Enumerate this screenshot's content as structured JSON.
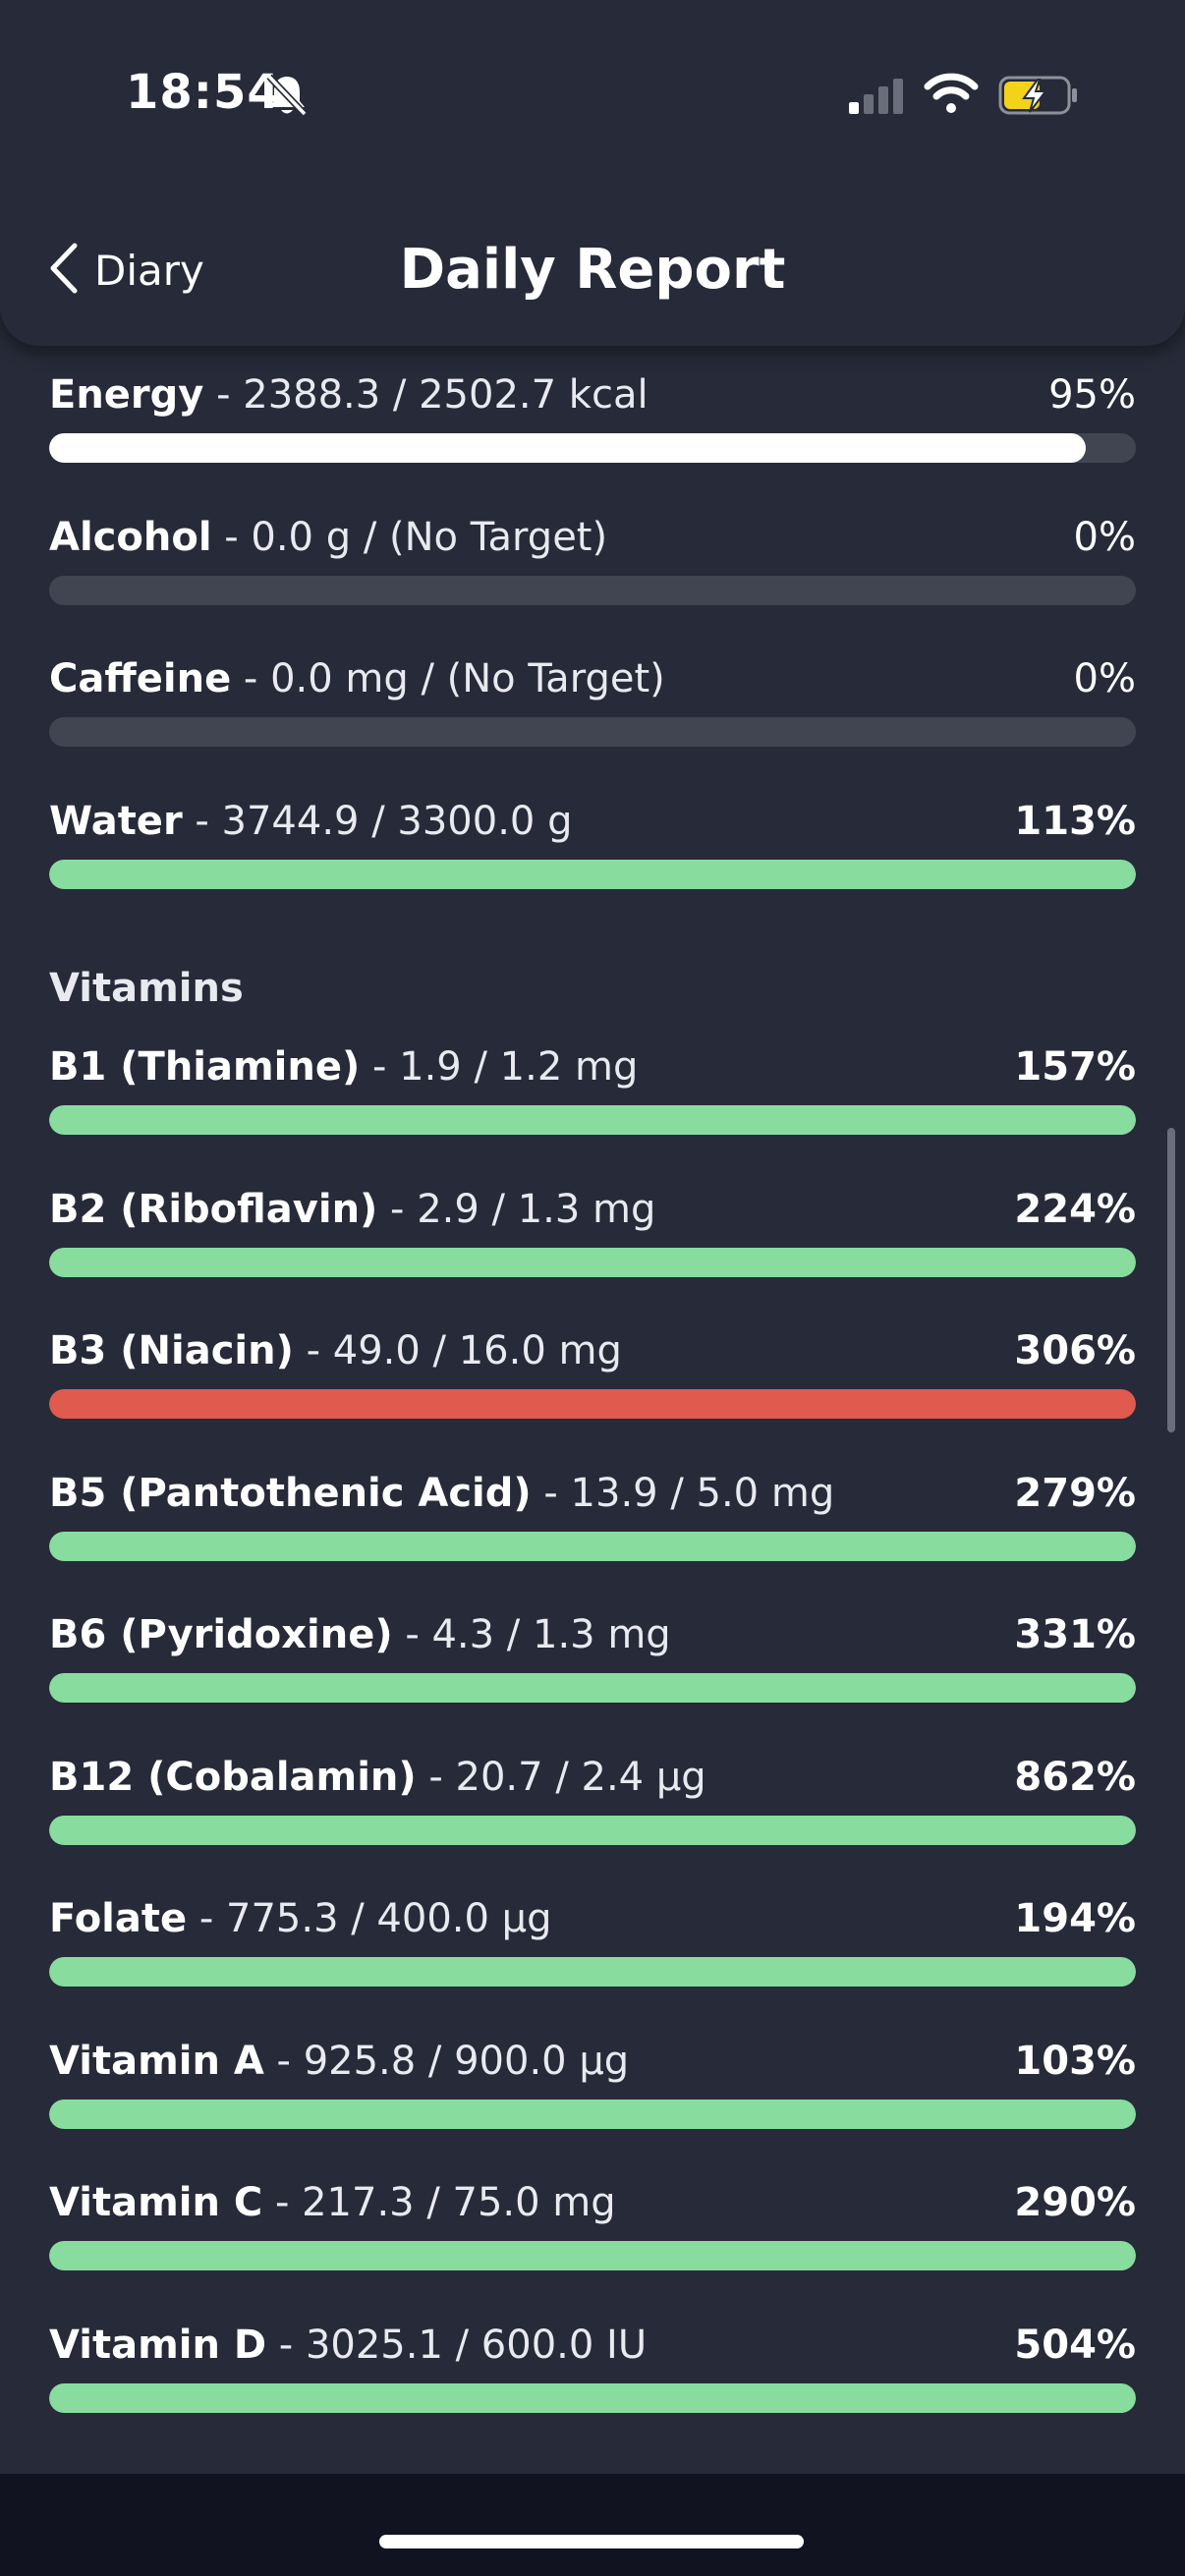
{
  "status_bar": {
    "time": "18:54"
  },
  "header": {
    "back_label": "Diary",
    "title": "Daily Report"
  },
  "colors": {
    "background": "#272a38",
    "bar_track": "#414451",
    "good": "#87dc9e",
    "over": "#e05a4d",
    "neutral": "#ffffff"
  },
  "general": [
    {
      "name": "Energy",
      "detail": " - 2388.3 / 2502.7 kcal",
      "percent": "95%",
      "fill": 0.954,
      "color": "#ffffff",
      "strong": false
    },
    {
      "name": "Alcohol",
      "detail": " - 0.0 g / (No Target)",
      "percent": "0%",
      "fill": 0,
      "color": "#ffffff",
      "strong": false
    },
    {
      "name": "Caffeine",
      "detail": " - 0.0 mg / (No Target)",
      "percent": "0%",
      "fill": 0,
      "color": "#ffffff",
      "strong": false
    },
    {
      "name": "Water",
      "detail": " - 3744.9 / 3300.0 g",
      "percent": "113%",
      "fill": 1,
      "color": "#87dc9e",
      "strong": true
    }
  ],
  "vitamins_title": "Vitamins",
  "vitamins": [
    {
      "name": "B1 (Thiamine)",
      "detail": " - 1.9 / 1.2 mg",
      "percent": "157%",
      "fill": 1,
      "color": "#87dc9e",
      "strong": true
    },
    {
      "name": "B2 (Riboflavin)",
      "detail": " - 2.9 / 1.3 mg",
      "percent": "224%",
      "fill": 1,
      "color": "#87dc9e",
      "strong": true
    },
    {
      "name": "B3 (Niacin)",
      "detail": " - 49.0 / 16.0 mg",
      "percent": "306%",
      "fill": 1,
      "color": "#e05a4d",
      "strong": true
    },
    {
      "name": "B5 (Pantothenic Acid)",
      "detail": " - 13.9 / 5.0 mg",
      "percent": "279%",
      "fill": 1,
      "color": "#87dc9e",
      "strong": true
    },
    {
      "name": "B6 (Pyridoxine)",
      "detail": " - 4.3 / 1.3 mg",
      "percent": "331%",
      "fill": 1,
      "color": "#87dc9e",
      "strong": true
    },
    {
      "name": "B12 (Cobalamin)",
      "detail": " - 20.7 / 2.4 µg",
      "percent": "862%",
      "fill": 1,
      "color": "#87dc9e",
      "strong": true
    },
    {
      "name": "Folate",
      "detail": " - 775.3 / 400.0 µg",
      "percent": "194%",
      "fill": 1,
      "color": "#87dc9e",
      "strong": true
    },
    {
      "name": "Vitamin A",
      "detail": " - 925.8 / 900.0 µg",
      "percent": "103%",
      "fill": 1,
      "color": "#87dc9e",
      "strong": true
    },
    {
      "name": "Vitamin C",
      "detail": " - 217.3 / 75.0 mg",
      "percent": "290%",
      "fill": 1,
      "color": "#87dc9e",
      "strong": true
    },
    {
      "name": "Vitamin D",
      "detail": " - 3025.1 / 600.0 IU",
      "percent": "504%",
      "fill": 1,
      "color": "#87dc9e",
      "strong": true
    }
  ]
}
